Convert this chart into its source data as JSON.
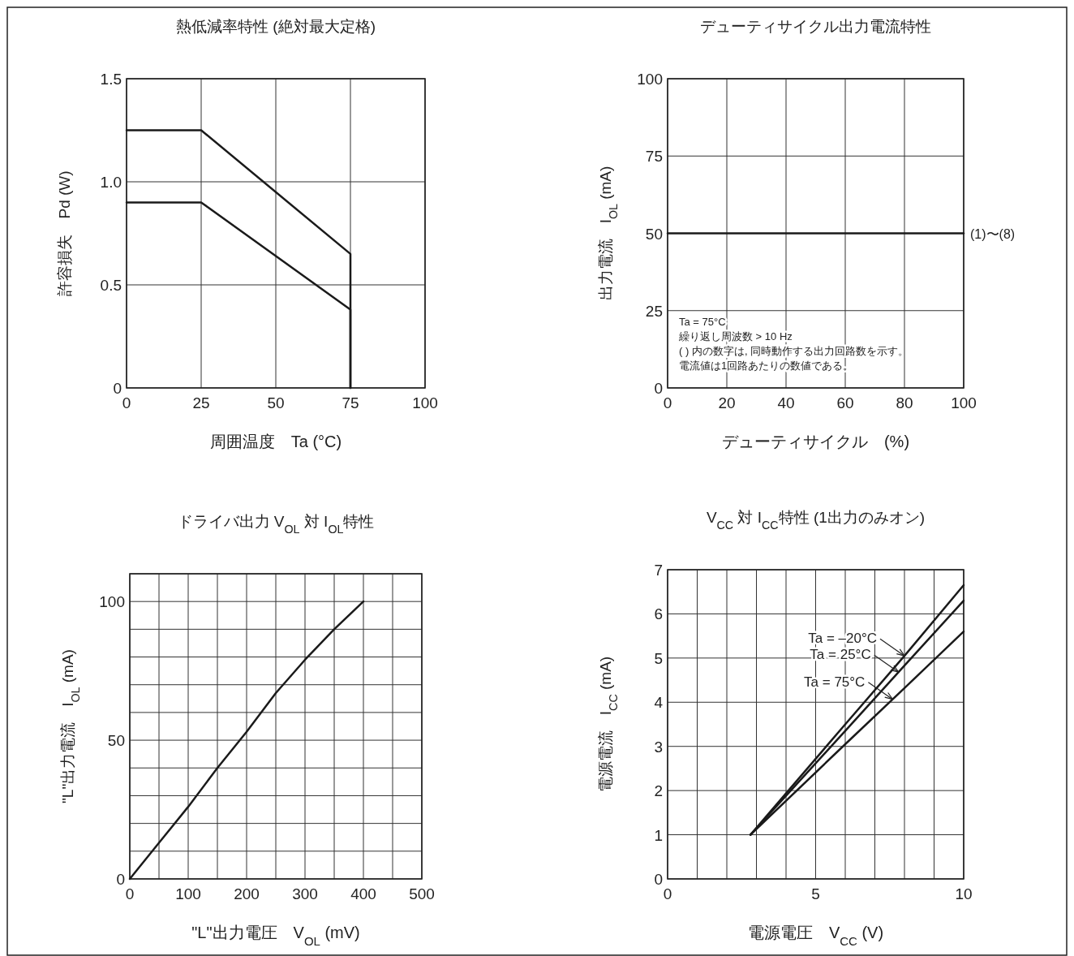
{
  "chart_data": [
    {
      "type": "line",
      "title": "熱低減率特性 (絶対最大定格)",
      "xlabel": "周囲温度　Ta (°C)",
      "ylabel": "許容損失　Pd (W)",
      "xlim": [
        0,
        100
      ],
      "ylim": [
        0,
        1.5
      ],
      "xticks": [
        0,
        25,
        50,
        75,
        100
      ],
      "yticks": [
        0,
        0.5,
        {
          "value": 1,
          "label": "1.0"
        },
        1.5
      ],
      "grid": true,
      "series": [
        {
          "color": "#1a1a1a",
          "x": [
            0,
            25,
            75,
            75
          ],
          "values": [
            1.25,
            1.25,
            0.65,
            0
          ]
        },
        {
          "color": "#1a1a1a",
          "x": [
            0,
            25,
            75,
            75
          ],
          "values": [
            0.9,
            0.9,
            0.38,
            0
          ]
        }
      ]
    },
    {
      "type": "line",
      "title": "デューティサイクル出力電流特性",
      "xlabel": "デューティサイクル　(%)",
      "ylabel": "出力電流　I$_{OL}$ (mA)",
      "xlim": [
        0,
        100
      ],
      "ylim": [
        0,
        100
      ],
      "xticks": [
        0,
        20,
        40,
        60,
        80,
        100
      ],
      "yticks": [
        0,
        25,
        50,
        75,
        100
      ],
      "grid": true,
      "series": [
        {
          "color": "#1a1a1a",
          "x": [
            0,
            100
          ],
          "values": [
            50,
            50
          ]
        }
      ],
      "annotations": [
        {
          "text": "(1)〜(8)",
          "x": 100,
          "y": 50
        },
        "Ta = 75°C",
        "繰り返し周波数 > 10 Hz",
        "( ) 内の数字は, 同時動作する出力回路数を示す。",
        "電流値は1回路あたりの数値である。"
      ]
    },
    {
      "type": "line",
      "title": "ドライバ出力 V$_{OL}$ 対 I$_{OL}$特性",
      "xlabel": "\"L\"出力電圧　V$_{OL}$ (mV)",
      "ylabel": "\"L\"出力電流　I$_{OL}$ (mA)",
      "xlim": [
        0,
        500
      ],
      "ylim": [
        0,
        110
      ],
      "xticks": [
        0,
        {
          "value": 50,
          "label": null
        },
        100,
        {
          "value": 150,
          "label": null
        },
        200,
        {
          "value": 250,
          "label": null
        },
        300,
        {
          "value": 350,
          "label": null
        },
        400,
        {
          "value": 450,
          "label": null
        },
        500
      ],
      "yticks": [
        0,
        {
          "value": 10,
          "label": null
        },
        {
          "value": 20,
          "label": null
        },
        {
          "value": 30,
          "label": null
        },
        {
          "value": 40,
          "label": null
        },
        50,
        {
          "value": 60,
          "label": null
        },
        {
          "value": 70,
          "label": null
        },
        {
          "value": 80,
          "label": null
        },
        {
          "value": 90,
          "label": null
        },
        100,
        {
          "value": 110,
          "label": null
        }
      ],
      "grid": true,
      "series": [
        {
          "color": "#1a1a1a",
          "x": [
            0,
            50,
            100,
            150,
            200,
            250,
            300,
            350,
            400
          ],
          "values": [
            0,
            13,
            26,
            40,
            53,
            67,
            79,
            90,
            100
          ]
        }
      ]
    },
    {
      "type": "line",
      "title": "V$_{CC}$ 対 I$_{CC}$特性 (1出力のみオン)",
      "xlabel": "電源電圧　V$_{CC}$ (V)",
      "ylabel": "電源電流　I$_{CC}$ (mA)",
      "xlim": [
        0,
        10
      ],
      "ylim": [
        0,
        7
      ],
      "xticks": [
        0,
        {
          "value": 1,
          "label": null
        },
        {
          "value": 2,
          "label": null
        },
        {
          "value": 3,
          "label": null
        },
        {
          "value": 4,
          "label": null
        },
        5,
        {
          "value": 6,
          "label": null
        },
        {
          "value": 7,
          "label": null
        },
        {
          "value": 8,
          "label": null
        },
        {
          "value": 9,
          "label": null
        },
        10
      ],
      "yticks": [
        0,
        1,
        2,
        3,
        4,
        5,
        6,
        7
      ],
      "grid": true,
      "legend": "top right",
      "series": [
        {
          "name": "Ta = –20°C",
          "color": "#1a1a1a",
          "x": [
            2.8,
            6,
            8,
            10
          ],
          "values": [
            1,
            3.5,
            5.05,
            6.65
          ]
        },
        {
          "name": "Ta = 25°C",
          "color": "#1a1a1a",
          "x": [
            2.8,
            6,
            8,
            10
          ],
          "values": [
            1,
            3.35,
            4.83,
            6.3
          ]
        },
        {
          "name": "Ta = 75°C",
          "color": "#1a1a1a",
          "x": [
            2.8,
            6,
            8,
            10
          ],
          "values": [
            1,
            3.05,
            4.32,
            5.6
          ]
        }
      ]
    }
  ]
}
